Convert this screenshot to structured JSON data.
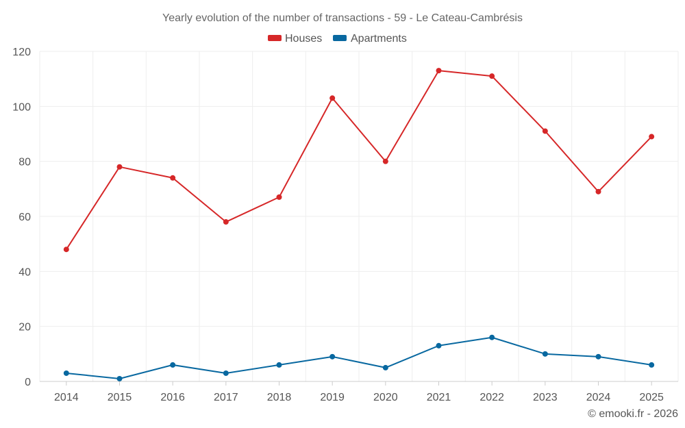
{
  "chart_data": {
    "type": "line",
    "title": "Yearly evolution of the number of transactions - 59 - Le Cateau-Cambrésis",
    "xlabel": "",
    "ylabel": "",
    "categories": [
      "2014",
      "2015",
      "2016",
      "2017",
      "2018",
      "2019",
      "2020",
      "2021",
      "2022",
      "2023",
      "2024",
      "2025"
    ],
    "ylim": [
      0,
      120
    ],
    "yticks": [
      "0",
      "20",
      "40",
      "60",
      "80",
      "100",
      "120"
    ],
    "grid": true,
    "legend": "top-center",
    "series": [
      {
        "name": "Houses",
        "color": "#d62728",
        "values": [
          48,
          78,
          74,
          58,
          67,
          103,
          80,
          113,
          111,
          91,
          69,
          89
        ]
      },
      {
        "name": "Apartments",
        "color": "#0868a0",
        "values": [
          3,
          1,
          6,
          3,
          6,
          9,
          5,
          13,
          16,
          10,
          9,
          6
        ]
      }
    ]
  },
  "credit": "© emooki.fr - 2026"
}
